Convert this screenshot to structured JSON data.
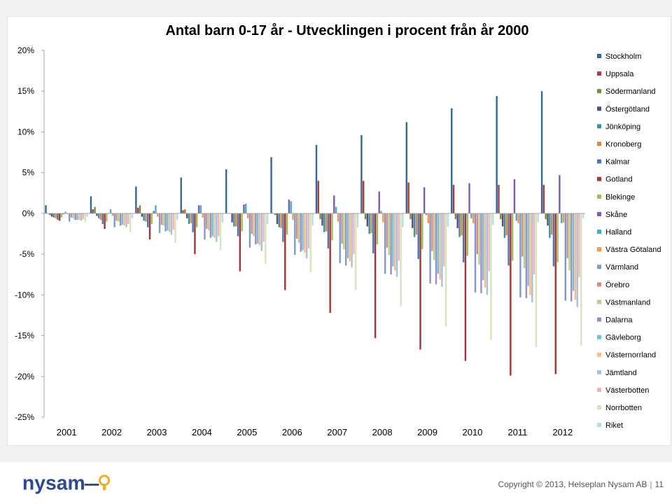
{
  "chart_data": {
    "type": "bar",
    "title": "Antal barn 0-17 år  -  Utvecklingen i procent från år 2000",
    "y_ticks": [
      "20%",
      "15%",
      "10%",
      "5%",
      "0%",
      "-5%",
      "-10%",
      "-15%",
      "-20%",
      "-25%"
    ],
    "ylim": [
      -25,
      20
    ],
    "yunit": "%",
    "grid": false,
    "legend_position": "right",
    "categories": [
      "2001",
      "2002",
      "2003",
      "2004",
      "2005",
      "2006",
      "2007",
      "2008",
      "2009",
      "2010",
      "2011",
      "2012"
    ],
    "series": [
      {
        "name": "Stockholm",
        "color": "#336699",
        "values": [
          1.0,
          2.1,
          3.3,
          4.4,
          5.4,
          6.9,
          8.4,
          9.6,
          11.2,
          12.9,
          14.4,
          15.0
        ]
      },
      {
        "name": "Uppsala",
        "color": "#b03a3a",
        "values": [
          0.0,
          0.5,
          0.7,
          0.4,
          0.0,
          0.0,
          4.0,
          4.0,
          3.8,
          3.5,
          3.5,
          3.5
        ]
      },
      {
        "name": "Södermanland",
        "color": "#6f8f3a",
        "values": [
          -0.2,
          0.8,
          1.0,
          0.5,
          0.0,
          -0.2,
          -0.7,
          -0.7,
          -0.7,
          -0.7,
          -0.7,
          -0.7
        ]
      },
      {
        "name": "Östergötland",
        "color": "#5c4a7e",
        "values": [
          -0.4,
          -0.3,
          -0.4,
          -0.6,
          -1.1,
          -1.3,
          -1.5,
          -1.6,
          -1.8,
          -1.8,
          -1.6,
          -1.5
        ]
      },
      {
        "name": "Jönköping",
        "color": "#3d8fa8",
        "values": [
          -0.5,
          -0.6,
          -0.9,
          -1.3,
          -1.6,
          -1.7,
          -2.3,
          -2.5,
          -2.9,
          -2.9,
          -3.0,
          -3.0
        ]
      },
      {
        "name": "Kronoberg",
        "color": "#d88a3a",
        "values": [
          -0.6,
          -0.8,
          -1.0,
          -1.2,
          -1.6,
          -1.8,
          -2.2,
          -2.4,
          -2.6,
          -2.7,
          -2.7,
          -2.6
        ]
      },
      {
        "name": "Kalmar",
        "color": "#4a78b0",
        "values": [
          -0.8,
          -1.3,
          -1.7,
          -2.3,
          -2.8,
          -3.5,
          -4.3,
          -4.9,
          -5.6,
          -6.0,
          -6.4,
          -6.5
        ]
      },
      {
        "name": "Gotland",
        "color": "#a33535",
        "values": [
          -0.9,
          -1.9,
          -3.2,
          -5.0,
          -7.1,
          -9.4,
          -12.2,
          -15.3,
          -16.7,
          -18.1,
          -19.9,
          -19.7
        ]
      },
      {
        "name": "Blekinge",
        "color": "#9cbd5c",
        "values": [
          -0.5,
          -1.0,
          -1.3,
          -1.7,
          -2.2,
          -2.6,
          -3.3,
          -3.8,
          -4.4,
          -5.2,
          -5.8,
          -6.0
        ]
      },
      {
        "name": "Skåne",
        "color": "#7b5ea7",
        "values": [
          -0.1,
          0.0,
          0.3,
          1.0,
          1.1,
          1.7,
          2.2,
          2.7,
          3.2,
          3.7,
          4.2,
          4.7
        ]
      },
      {
        "name": "Halland",
        "color": "#4bacc6",
        "values": [
          0.2,
          0.5,
          1.0,
          1.0,
          1.2,
          1.5,
          0.8,
          0.3,
          -0.2,
          -0.6,
          -0.9,
          -1.2
        ]
      },
      {
        "name": "Västra Götaland",
        "color": "#f79646",
        "values": [
          -0.1,
          -0.3,
          -0.4,
          -0.5,
          -0.6,
          -0.8,
          -1.0,
          -1.1,
          -1.2,
          -1.2,
          -1.2,
          -1.1
        ]
      },
      {
        "name": "Värmland",
        "color": "#7d9bc8",
        "values": [
          -1.0,
          -1.7,
          -2.4,
          -3.2,
          -4.2,
          -5.1,
          -6.1,
          -7.4,
          -8.6,
          -9.7,
          -10.3,
          -10.7
        ]
      },
      {
        "name": "Örebro",
        "color": "#d98a8a",
        "values": [
          -0.5,
          -0.9,
          -1.4,
          -1.9,
          -2.5,
          -3.1,
          -3.7,
          -4.2,
          -4.6,
          -5.0,
          -5.3,
          -5.5
        ]
      },
      {
        "name": "Västmanland",
        "color": "#b8cf8a",
        "values": [
          -0.6,
          -1.0,
          -1.5,
          -2.1,
          -2.8,
          -3.6,
          -4.4,
          -5.1,
          -5.7,
          -6.3,
          -6.7,
          -7.0
        ]
      },
      {
        "name": "Dalarna",
        "color": "#9b8ec2",
        "values": [
          -0.8,
          -1.5,
          -2.2,
          -3.0,
          -3.8,
          -4.7,
          -6.4,
          -7.5,
          -8.7,
          -9.8,
          -10.4,
          -10.8
        ]
      },
      {
        "name": "Gävleborg",
        "color": "#6fc0d8",
        "values": [
          -0.8,
          -1.4,
          -2.1,
          -2.8,
          -3.7,
          -4.5,
          -5.5,
          -6.5,
          -7.4,
          -8.2,
          -8.9,
          -9.5
        ]
      },
      {
        "name": "Västernorrland",
        "color": "#f9b98a",
        "values": [
          -0.8,
          -1.5,
          -2.3,
          -3.0,
          -3.9,
          -4.8,
          -5.9,
          -7.0,
          -8.1,
          -9.1,
          -10.0,
          -10.6
        ]
      },
      {
        "name": "Jämtland",
        "color": "#a8bfdf",
        "values": [
          -0.9,
          -1.7,
          -2.6,
          -3.5,
          -4.6,
          -5.5,
          -6.6,
          -7.8,
          -9.0,
          -10.0,
          -10.9,
          -11.5
        ]
      },
      {
        "name": "Västerbotten",
        "color": "#ebb7b7",
        "values": [
          -0.7,
          -1.3,
          -2.0,
          -2.8,
          -3.5,
          -4.3,
          -5.0,
          -5.8,
          -6.5,
          -7.1,
          -7.5,
          -7.8
        ]
      },
      {
        "name": "Norrbotten",
        "color": "#d7e4bd",
        "values": [
          -1.1,
          -2.3,
          -3.6,
          -4.5,
          -6.2,
          -7.2,
          -9.4,
          -11.4,
          -13.9,
          -15.5,
          -16.4,
          -16.2
        ]
      },
      {
        "name": "Riket",
        "color": "#b7dde8",
        "values": [
          -0.4,
          -0.6,
          -0.8,
          -1.1,
          -1.3,
          -1.5,
          -1.7,
          -1.7,
          -1.6,
          -1.4,
          -1.1,
          -0.6
        ]
      }
    ]
  },
  "footer": {
    "copyright": "Copyright © 2013, Helseplan Nysam AB",
    "page_number": "11",
    "logo_text": "nysam"
  },
  "colors": {
    "axis": "#a6a6a6",
    "logo_blue": "#2c4a8c",
    "logo_orange": "#f7a81b"
  }
}
